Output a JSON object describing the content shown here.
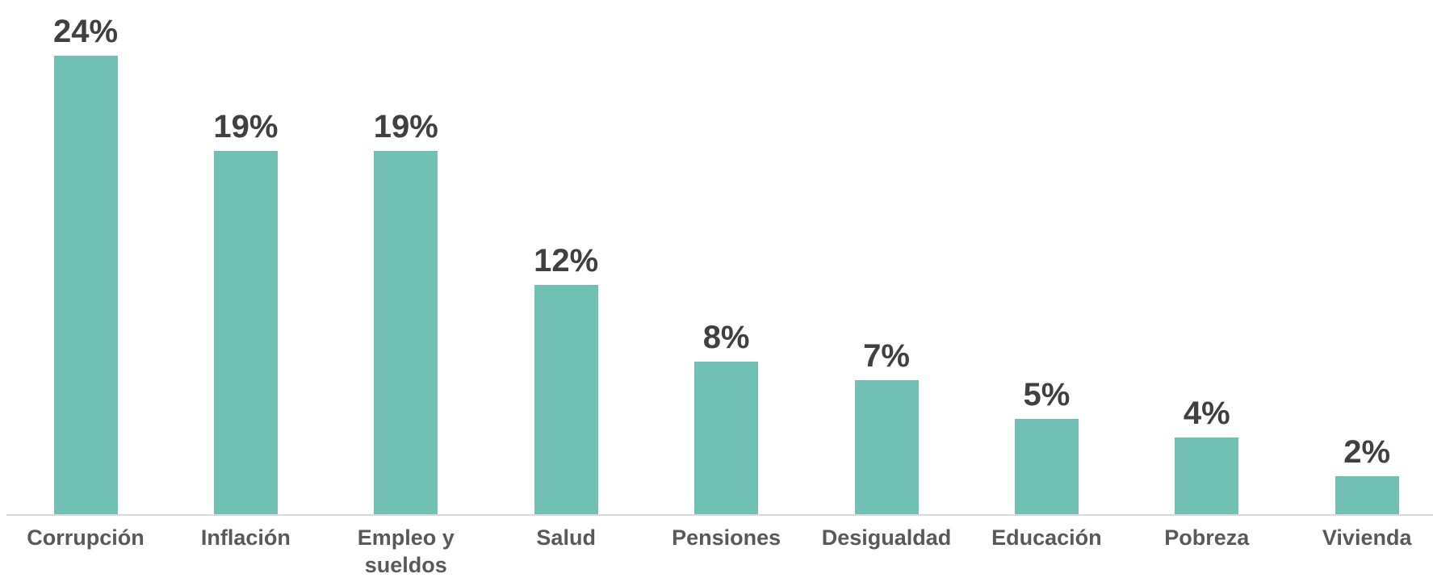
{
  "chart_data": {
    "type": "bar",
    "categories": [
      "Corrupción",
      "Inflación",
      "Empleo y sueldos",
      "Salud",
      "Pensiones",
      "Desigualdad",
      "Educación",
      "Pobreza",
      "Vivienda"
    ],
    "values": [
      24,
      19,
      19,
      12,
      8,
      7,
      5,
      4,
      2
    ],
    "value_labels": [
      "24%",
      "19%",
      "19%",
      "12%",
      "8%",
      "7%",
      "5%",
      "4%",
      "2%"
    ],
    "color": "#70c1b3"
  }
}
